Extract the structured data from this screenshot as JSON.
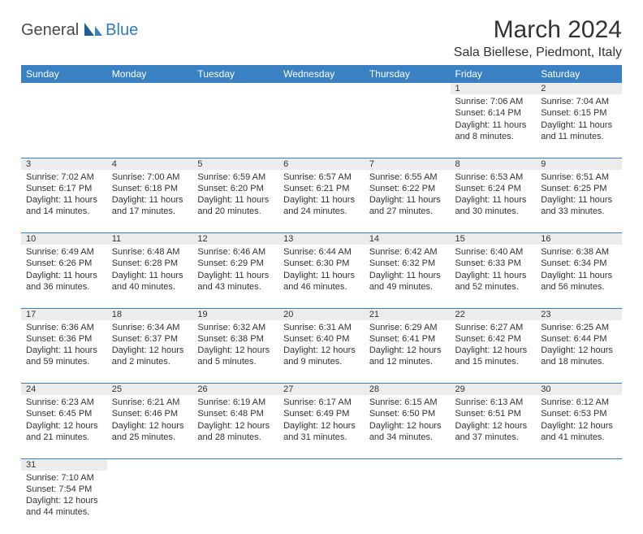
{
  "logo": {
    "part1": "General",
    "part2": "Blue"
  },
  "title": "March 2024",
  "location": "Sala Biellese, Piedmont, Italy",
  "colors": {
    "header_bg": "#3a81c3",
    "header_text": "#ffffff",
    "daynum_bg": "#ececec",
    "rule": "#3a81c3",
    "logo_accent": "#2f7bbf",
    "text": "#333333"
  },
  "weekdays": [
    "Sunday",
    "Monday",
    "Tuesday",
    "Wednesday",
    "Thursday",
    "Friday",
    "Saturday"
  ],
  "weeks": [
    [
      null,
      null,
      null,
      null,
      null,
      {
        "n": "1",
        "sr": "Sunrise: 7:06 AM",
        "ss": "Sunset: 6:14 PM",
        "d1": "Daylight: 11 hours",
        "d2": "and 8 minutes."
      },
      {
        "n": "2",
        "sr": "Sunrise: 7:04 AM",
        "ss": "Sunset: 6:15 PM",
        "d1": "Daylight: 11 hours",
        "d2": "and 11 minutes."
      }
    ],
    [
      {
        "n": "3",
        "sr": "Sunrise: 7:02 AM",
        "ss": "Sunset: 6:17 PM",
        "d1": "Daylight: 11 hours",
        "d2": "and 14 minutes."
      },
      {
        "n": "4",
        "sr": "Sunrise: 7:00 AM",
        "ss": "Sunset: 6:18 PM",
        "d1": "Daylight: 11 hours",
        "d2": "and 17 minutes."
      },
      {
        "n": "5",
        "sr": "Sunrise: 6:59 AM",
        "ss": "Sunset: 6:20 PM",
        "d1": "Daylight: 11 hours",
        "d2": "and 20 minutes."
      },
      {
        "n": "6",
        "sr": "Sunrise: 6:57 AM",
        "ss": "Sunset: 6:21 PM",
        "d1": "Daylight: 11 hours",
        "d2": "and 24 minutes."
      },
      {
        "n": "7",
        "sr": "Sunrise: 6:55 AM",
        "ss": "Sunset: 6:22 PM",
        "d1": "Daylight: 11 hours",
        "d2": "and 27 minutes."
      },
      {
        "n": "8",
        "sr": "Sunrise: 6:53 AM",
        "ss": "Sunset: 6:24 PM",
        "d1": "Daylight: 11 hours",
        "d2": "and 30 minutes."
      },
      {
        "n": "9",
        "sr": "Sunrise: 6:51 AM",
        "ss": "Sunset: 6:25 PM",
        "d1": "Daylight: 11 hours",
        "d2": "and 33 minutes."
      }
    ],
    [
      {
        "n": "10",
        "sr": "Sunrise: 6:49 AM",
        "ss": "Sunset: 6:26 PM",
        "d1": "Daylight: 11 hours",
        "d2": "and 36 minutes."
      },
      {
        "n": "11",
        "sr": "Sunrise: 6:48 AM",
        "ss": "Sunset: 6:28 PM",
        "d1": "Daylight: 11 hours",
        "d2": "and 40 minutes."
      },
      {
        "n": "12",
        "sr": "Sunrise: 6:46 AM",
        "ss": "Sunset: 6:29 PM",
        "d1": "Daylight: 11 hours",
        "d2": "and 43 minutes."
      },
      {
        "n": "13",
        "sr": "Sunrise: 6:44 AM",
        "ss": "Sunset: 6:30 PM",
        "d1": "Daylight: 11 hours",
        "d2": "and 46 minutes."
      },
      {
        "n": "14",
        "sr": "Sunrise: 6:42 AM",
        "ss": "Sunset: 6:32 PM",
        "d1": "Daylight: 11 hours",
        "d2": "and 49 minutes."
      },
      {
        "n": "15",
        "sr": "Sunrise: 6:40 AM",
        "ss": "Sunset: 6:33 PM",
        "d1": "Daylight: 11 hours",
        "d2": "and 52 minutes."
      },
      {
        "n": "16",
        "sr": "Sunrise: 6:38 AM",
        "ss": "Sunset: 6:34 PM",
        "d1": "Daylight: 11 hours",
        "d2": "and 56 minutes."
      }
    ],
    [
      {
        "n": "17",
        "sr": "Sunrise: 6:36 AM",
        "ss": "Sunset: 6:36 PM",
        "d1": "Daylight: 11 hours",
        "d2": "and 59 minutes."
      },
      {
        "n": "18",
        "sr": "Sunrise: 6:34 AM",
        "ss": "Sunset: 6:37 PM",
        "d1": "Daylight: 12 hours",
        "d2": "and 2 minutes."
      },
      {
        "n": "19",
        "sr": "Sunrise: 6:32 AM",
        "ss": "Sunset: 6:38 PM",
        "d1": "Daylight: 12 hours",
        "d2": "and 5 minutes."
      },
      {
        "n": "20",
        "sr": "Sunrise: 6:31 AM",
        "ss": "Sunset: 6:40 PM",
        "d1": "Daylight: 12 hours",
        "d2": "and 9 minutes."
      },
      {
        "n": "21",
        "sr": "Sunrise: 6:29 AM",
        "ss": "Sunset: 6:41 PM",
        "d1": "Daylight: 12 hours",
        "d2": "and 12 minutes."
      },
      {
        "n": "22",
        "sr": "Sunrise: 6:27 AM",
        "ss": "Sunset: 6:42 PM",
        "d1": "Daylight: 12 hours",
        "d2": "and 15 minutes."
      },
      {
        "n": "23",
        "sr": "Sunrise: 6:25 AM",
        "ss": "Sunset: 6:44 PM",
        "d1": "Daylight: 12 hours",
        "d2": "and 18 minutes."
      }
    ],
    [
      {
        "n": "24",
        "sr": "Sunrise: 6:23 AM",
        "ss": "Sunset: 6:45 PM",
        "d1": "Daylight: 12 hours",
        "d2": "and 21 minutes."
      },
      {
        "n": "25",
        "sr": "Sunrise: 6:21 AM",
        "ss": "Sunset: 6:46 PM",
        "d1": "Daylight: 12 hours",
        "d2": "and 25 minutes."
      },
      {
        "n": "26",
        "sr": "Sunrise: 6:19 AM",
        "ss": "Sunset: 6:48 PM",
        "d1": "Daylight: 12 hours",
        "d2": "and 28 minutes."
      },
      {
        "n": "27",
        "sr": "Sunrise: 6:17 AM",
        "ss": "Sunset: 6:49 PM",
        "d1": "Daylight: 12 hours",
        "d2": "and 31 minutes."
      },
      {
        "n": "28",
        "sr": "Sunrise: 6:15 AM",
        "ss": "Sunset: 6:50 PM",
        "d1": "Daylight: 12 hours",
        "d2": "and 34 minutes."
      },
      {
        "n": "29",
        "sr": "Sunrise: 6:13 AM",
        "ss": "Sunset: 6:51 PM",
        "d1": "Daylight: 12 hours",
        "d2": "and 37 minutes."
      },
      {
        "n": "30",
        "sr": "Sunrise: 6:12 AM",
        "ss": "Sunset: 6:53 PM",
        "d1": "Daylight: 12 hours",
        "d2": "and 41 minutes."
      }
    ],
    [
      {
        "n": "31",
        "sr": "Sunrise: 7:10 AM",
        "ss": "Sunset: 7:54 PM",
        "d1": "Daylight: 12 hours",
        "d2": "and 44 minutes."
      },
      null,
      null,
      null,
      null,
      null,
      null
    ]
  ]
}
